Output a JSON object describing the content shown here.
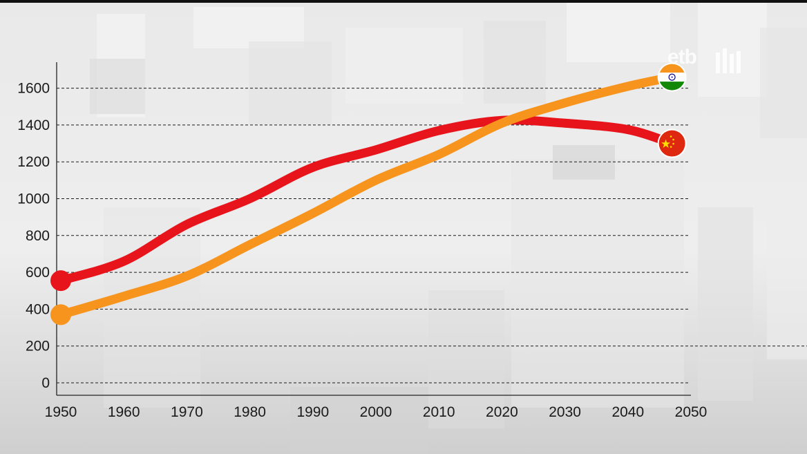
{
  "branding": {
    "logo_text": "etb"
  },
  "chart_data": {
    "type": "line",
    "title": "",
    "xlabel": "",
    "ylabel": "",
    "x": [
      1950,
      1960,
      1970,
      1980,
      1990,
      2000,
      2010,
      2020,
      2030,
      2040,
      2047
    ],
    "xticks": [
      "1950",
      "1960",
      "1970",
      "1980",
      "1990",
      "2000",
      "2010",
      "2020",
      "2030",
      "2040",
      "2050"
    ],
    "yticks": [
      "0",
      "200",
      "400",
      "600",
      "800",
      "1000",
      "1200",
      "1400",
      "1600"
    ],
    "xlim": [
      1950,
      2050
    ],
    "ylim": [
      0,
      1700
    ],
    "grid": "horizontal dashed",
    "legend": "flag markers at line ends",
    "series": [
      {
        "color": "#e8141c",
        "end_marker": "china-flag",
        "values": [
          555,
          660,
          860,
          1000,
          1170,
          1265,
          1370,
          1425,
          1410,
          1375,
          1300
        ]
      },
      {
        "color": "#f7941d",
        "end_marker": "india-flag",
        "values": [
          370,
          470,
          580,
          750,
          920,
          1100,
          1240,
          1410,
          1520,
          1610,
          1660
        ]
      }
    ]
  }
}
